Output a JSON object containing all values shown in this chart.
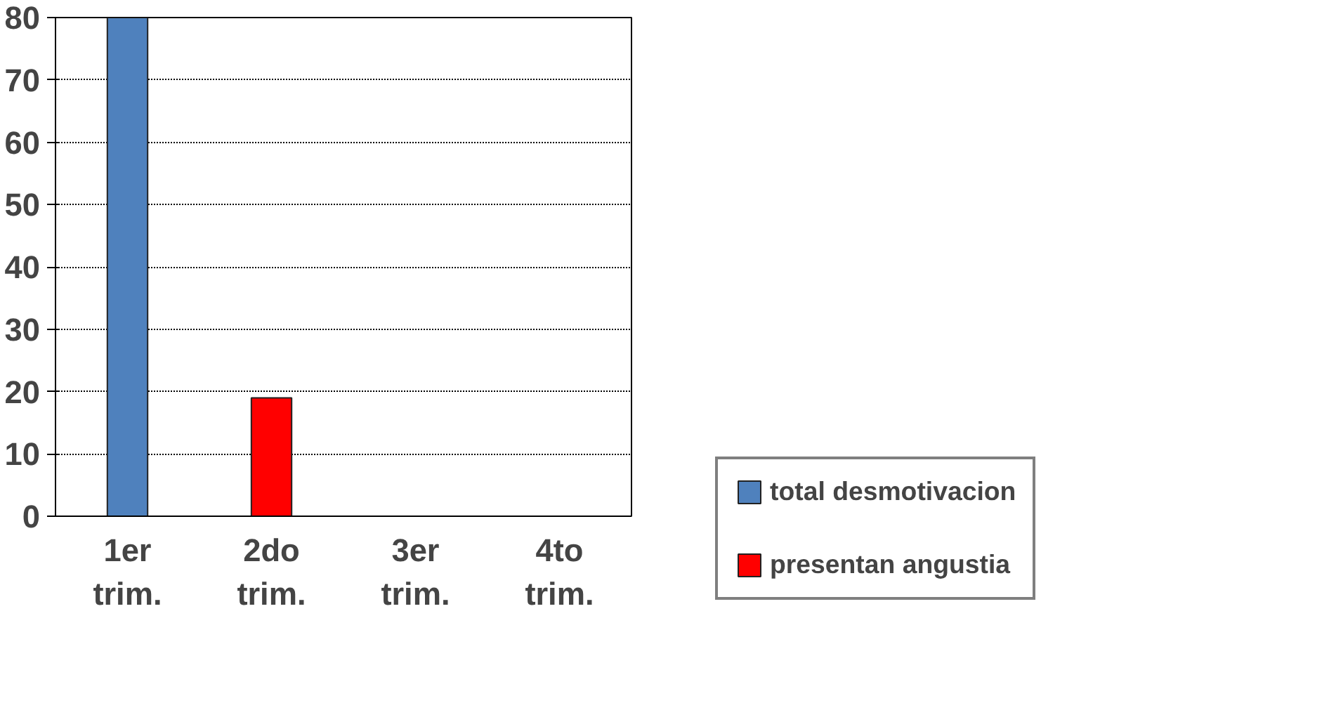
{
  "chart_data": {
    "type": "bar",
    "categories": [
      "1er trim.",
      "2do trim.",
      "3er trim.",
      "4to trim."
    ],
    "series": [
      {
        "name": "total desmotivacion",
        "color": "#4f81bd",
        "values": [
          80,
          null,
          null,
          null
        ]
      },
      {
        "name": "presentan angustia",
        "color": "#ff0000",
        "values": [
          null,
          19,
          null,
          null
        ]
      }
    ],
    "ylim": [
      0,
      80
    ],
    "yticks": [
      0,
      10,
      20,
      30,
      40,
      50,
      60,
      70,
      80
    ],
    "grid": "y",
    "legend": "right"
  }
}
